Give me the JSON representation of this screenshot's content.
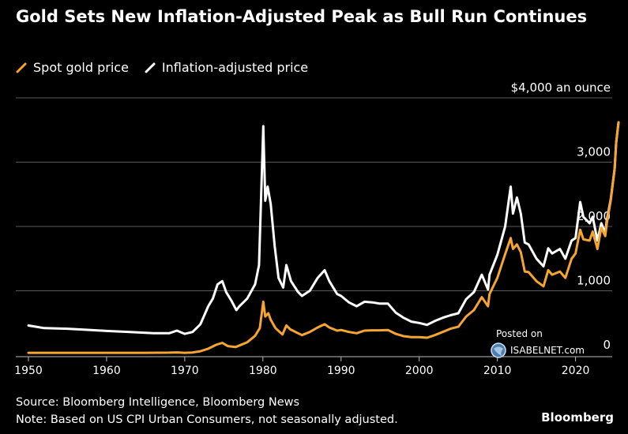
{
  "header": {
    "title": "Gold Sets New Inflation-Adjusted Peak as Bull Run Continues"
  },
  "legend": {
    "spot_label": "Spot gold price",
    "adjusted_label": "Inflation-adjusted price"
  },
  "footer": {
    "source": "Source: Bloomberg Intelligence, Bloomberg News",
    "note": "Note: Based on US CPI Urban Consumers, not seasonally adjusted.",
    "brand": "Bloomberg"
  },
  "watermark": {
    "posted": "Posted on",
    "site": "ISABELNET.com"
  },
  "colors": {
    "spot": "#f7a531",
    "adjusted": "#ffffff",
    "grid": "#5a5a5a",
    "background": "#000000"
  },
  "chart_data": {
    "type": "line",
    "unit_label": "$4,000 an ounce",
    "xlim": [
      1950,
      2025.5
    ],
    "ylim": [
      0,
      4000
    ],
    "x_ticks": [
      1950,
      1960,
      1970,
      1980,
      1990,
      2000,
      2010,
      2020
    ],
    "y_ticks": [
      {
        "value": 0,
        "label": "0"
      },
      {
        "value": 1000,
        "label": "1,000"
      },
      {
        "value": 2000,
        "label": "2,000"
      },
      {
        "value": 3000,
        "label": "3,000"
      },
      {
        "value": 4000,
        "label": "$4,000 an ounce"
      }
    ],
    "grid": "horizontal",
    "series": [
      {
        "name": "Spot gold price",
        "color": "#f7a531",
        "points": [
          [
            1950,
            35
          ],
          [
            1955,
            35
          ],
          [
            1960,
            35
          ],
          [
            1965,
            35
          ],
          [
            1968,
            38
          ],
          [
            1969,
            42
          ],
          [
            1970,
            36
          ],
          [
            1971,
            40
          ],
          [
            1972,
            60
          ],
          [
            1973,
            100
          ],
          [
            1974,
            160
          ],
          [
            1974.8,
            190
          ],
          [
            1975.5,
            140
          ],
          [
            1976.5,
            125
          ],
          [
            1977,
            150
          ],
          [
            1978,
            200
          ],
          [
            1979,
            300
          ],
          [
            1979.6,
            420
          ],
          [
            1980.05,
            830
          ],
          [
            1980.3,
            600
          ],
          [
            1980.7,
            650
          ],
          [
            1981,
            550
          ],
          [
            1981.6,
            420
          ],
          [
            1982.5,
            320
          ],
          [
            1983,
            460
          ],
          [
            1983.5,
            400
          ],
          [
            1984.5,
            340
          ],
          [
            1985,
            310
          ],
          [
            1986,
            360
          ],
          [
            1987,
            430
          ],
          [
            1987.9,
            480
          ],
          [
            1988.5,
            430
          ],
          [
            1989.5,
            380
          ],
          [
            1990,
            390
          ],
          [
            1991,
            360
          ],
          [
            1992,
            340
          ],
          [
            1993,
            380
          ],
          [
            1994,
            385
          ],
          [
            1995,
            385
          ],
          [
            1996,
            390
          ],
          [
            1997,
            330
          ],
          [
            1998,
            295
          ],
          [
            1999,
            280
          ],
          [
            2000,
            280
          ],
          [
            2001,
            270
          ],
          [
            2002,
            310
          ],
          [
            2003,
            360
          ],
          [
            2004,
            410
          ],
          [
            2005,
            440
          ],
          [
            2006,
            600
          ],
          [
            2007,
            700
          ],
          [
            2008,
            900
          ],
          [
            2008.8,
            760
          ],
          [
            2009,
            950
          ],
          [
            2010,
            1200
          ],
          [
            2011,
            1570
          ],
          [
            2011.7,
            1820
          ],
          [
            2012,
            1650
          ],
          [
            2012.5,
            1720
          ],
          [
            2013,
            1600
          ],
          [
            2013.5,
            1300
          ],
          [
            2014,
            1290
          ],
          [
            2015,
            1150
          ],
          [
            2015.9,
            1070
          ],
          [
            2016.5,
            1320
          ],
          [
            2017,
            1250
          ],
          [
            2018,
            1300
          ],
          [
            2018.7,
            1200
          ],
          [
            2019.5,
            1500
          ],
          [
            2020,
            1580
          ],
          [
            2020.6,
            1950
          ],
          [
            2021,
            1800
          ],
          [
            2021.8,
            1780
          ],
          [
            2022.2,
            1920
          ],
          [
            2022.8,
            1650
          ],
          [
            2023.3,
            1980
          ],
          [
            2023.8,
            1850
          ],
          [
            2024,
            2050
          ],
          [
            2024.5,
            2400
          ],
          [
            2025,
            2900
          ],
          [
            2025.2,
            3300
          ],
          [
            2025.5,
            3620
          ]
        ]
      },
      {
        "name": "Inflation-adjusted price",
        "color": "#ffffff",
        "points": [
          [
            1950,
            460
          ],
          [
            1951,
            440
          ],
          [
            1952,
            420
          ],
          [
            1955,
            410
          ],
          [
            1958,
            390
          ],
          [
            1960,
            375
          ],
          [
            1963,
            360
          ],
          [
            1966,
            340
          ],
          [
            1968,
            340
          ],
          [
            1969,
            380
          ],
          [
            1970,
            330
          ],
          [
            1971,
            360
          ],
          [
            1972,
            480
          ],
          [
            1973,
            760
          ],
          [
            1973.6,
            880
          ],
          [
            1974.2,
            1100
          ],
          [
            1974.8,
            1150
          ],
          [
            1975.3,
            980
          ],
          [
            1976,
            840
          ],
          [
            1976.6,
            700
          ],
          [
            1977,
            760
          ],
          [
            1978,
            880
          ],
          [
            1979,
            1100
          ],
          [
            1979.5,
            1400
          ],
          [
            1980.05,
            3560
          ],
          [
            1980.3,
            2400
          ],
          [
            1980.6,
            2620
          ],
          [
            1981,
            2350
          ],
          [
            1981.5,
            1700
          ],
          [
            1982,
            1200
          ],
          [
            1982.6,
            1050
          ],
          [
            1983,
            1400
          ],
          [
            1983.6,
            1150
          ],
          [
            1984.5,
            980
          ],
          [
            1985,
            920
          ],
          [
            1986,
            1000
          ],
          [
            1987,
            1200
          ],
          [
            1987.9,
            1320
          ],
          [
            1988.5,
            1150
          ],
          [
            1989.5,
            950
          ],
          [
            1990,
            920
          ],
          [
            1991,
            820
          ],
          [
            1992,
            760
          ],
          [
            1993,
            830
          ],
          [
            1994,
            820
          ],
          [
            1995,
            800
          ],
          [
            1996,
            800
          ],
          [
            1997,
            660
          ],
          [
            1998,
            580
          ],
          [
            1999,
            520
          ],
          [
            2000,
            500
          ],
          [
            2001,
            470
          ],
          [
            2002,
            530
          ],
          [
            2003,
            580
          ],
          [
            2004,
            620
          ],
          [
            2005,
            650
          ],
          [
            2006,
            870
          ],
          [
            2007,
            980
          ],
          [
            2008,
            1250
          ],
          [
            2008.8,
            1020
          ],
          [
            2009,
            1250
          ],
          [
            2010,
            1560
          ],
          [
            2011,
            2000
          ],
          [
            2011.7,
            2620
          ],
          [
            2012,
            2200
          ],
          [
            2012.5,
            2450
          ],
          [
            2013,
            2200
          ],
          [
            2013.5,
            1750
          ],
          [
            2014,
            1720
          ],
          [
            2015,
            1500
          ],
          [
            2015.9,
            1380
          ],
          [
            2016.5,
            1660
          ],
          [
            2017,
            1580
          ],
          [
            2018,
            1650
          ],
          [
            2018.7,
            1500
          ],
          [
            2019.5,
            1780
          ],
          [
            2020,
            1820
          ],
          [
            2020.6,
            2380
          ],
          [
            2021,
            2150
          ],
          [
            2021.8,
            2050
          ],
          [
            2022.2,
            2150
          ],
          [
            2022.8,
            1780
          ],
          [
            2023.3,
            2050
          ],
          [
            2023.8,
            1900
          ],
          [
            2024,
            2100
          ],
          [
            2024.5,
            2420
          ],
          [
            2025,
            2900
          ],
          [
            2025.2,
            3300
          ],
          [
            2025.5,
            3620
          ]
        ]
      }
    ]
  }
}
